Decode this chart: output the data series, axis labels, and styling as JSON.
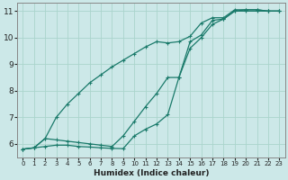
{
  "xlabel": "Humidex (Indice chaleur)",
  "bg_color": "#cce8e8",
  "grid_color": "#aad4cc",
  "line_color": "#1a7a6a",
  "marker": "+",
  "xlim": [
    -0.5,
    23.5
  ],
  "ylim": [
    5.5,
    11.3
  ],
  "xticks": [
    0,
    1,
    2,
    3,
    4,
    5,
    6,
    7,
    8,
    9,
    10,
    11,
    12,
    13,
    14,
    15,
    16,
    17,
    18,
    19,
    20,
    21,
    22,
    23
  ],
  "yticks": [
    6,
    7,
    8,
    9,
    10,
    11
  ],
  "curve_top_x": [
    0,
    1,
    2,
    3,
    4,
    5,
    6,
    7,
    8,
    9,
    10,
    11,
    12,
    13,
    14,
    15,
    16,
    17,
    18,
    19,
    20,
    21,
    22,
    23
  ],
  "curve_top_y": [
    5.8,
    5.85,
    6.2,
    7.0,
    7.5,
    7.9,
    8.3,
    8.6,
    8.9,
    9.15,
    9.4,
    9.65,
    9.85,
    9.8,
    9.85,
    10.05,
    10.55,
    10.75,
    10.75,
    11.05,
    11.05,
    11.05,
    11.0,
    11.0
  ],
  "curve_mid_x": [
    0,
    1,
    2,
    3,
    4,
    5,
    6,
    7,
    8,
    9,
    10,
    11,
    12,
    13,
    14,
    15,
    16,
    17,
    18,
    19,
    20,
    21,
    22,
    23
  ],
  "curve_mid_y": [
    5.8,
    5.85,
    6.2,
    6.15,
    6.1,
    6.05,
    6.0,
    5.95,
    5.9,
    6.3,
    6.85,
    7.4,
    7.9,
    8.5,
    8.5,
    9.85,
    10.1,
    10.65,
    10.7,
    11.0,
    11.05,
    11.05,
    11.0,
    11.0
  ],
  "curve_bot_x": [
    0,
    1,
    2,
    3,
    4,
    5,
    6,
    7,
    8,
    9,
    10,
    11,
    12,
    13,
    14,
    15,
    16,
    17,
    18,
    19,
    20,
    21,
    22,
    23
  ],
  "curve_bot_y": [
    5.8,
    5.85,
    5.9,
    5.95,
    5.95,
    5.9,
    5.88,
    5.85,
    5.83,
    5.82,
    6.3,
    6.55,
    6.75,
    7.1,
    8.5,
    9.6,
    10.0,
    10.5,
    10.7,
    11.0,
    11.0,
    11.0,
    11.0,
    11.0
  ]
}
